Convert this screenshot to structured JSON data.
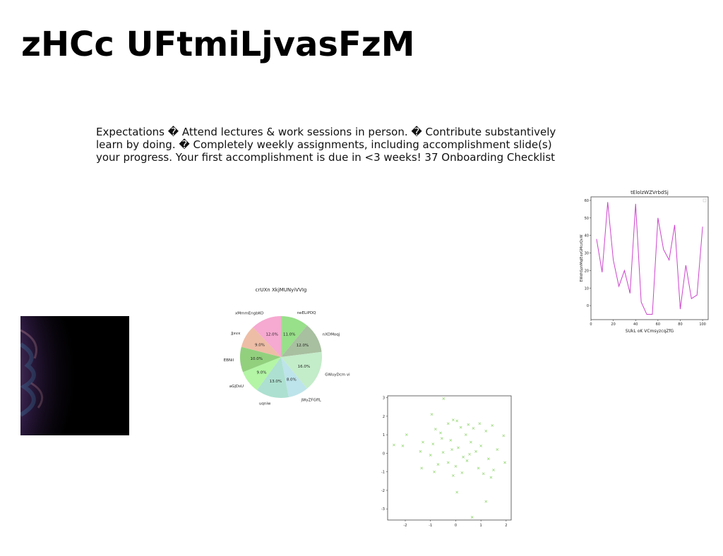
{
  "slide": {
    "title": "zHCc UFtmiLjvasFzM",
    "body_lines": [
      "Expectations � Attend lectures & work sessions in person. � Contribute substantively",
      "learn by doing. � Completely weekly assignments, including accomplishment slide(s)",
      "your progress. Your first accomplishment is due in <3 weeks! 37 Onboarding Checklist"
    ]
  },
  "chart_data": [
    {
      "type": "pie",
      "title": "crUXn XkjMUNyiVVIg",
      "labels": [
        "neELiPDQ",
        "nXDMoqj",
        "GWuyDcm vi",
        "jWyZFGffL",
        "uqniw",
        "aGjDsU",
        "EBNiI",
        "Jjxvx",
        "xMmmEngbKO"
      ],
      "values": [
        11.0,
        12.0,
        16.0,
        8.0,
        13.0,
        9.0,
        10.0,
        9.0,
        12.0
      ],
      "colors": [
        "#98e08a",
        "#a8bfa0",
        "#c3ecc9",
        "#bde4ea",
        "#ade0d0",
        "#b3f5a5",
        "#92d07e",
        "#eebda6",
        "#f6a9d1"
      ]
    },
    {
      "type": "line",
      "title": "tElolzWZVrbdSj",
      "xlabel": "SUkL oK VCmsyzcqZfG",
      "ylabel": "EWdhSphMqlEozGMczQvW",
      "x": [
        5,
        10,
        15,
        20,
        25,
        30,
        35,
        40,
        45,
        50,
        55,
        60,
        65,
        70,
        75,
        80,
        85,
        90,
        95,
        100
      ],
      "y": [
        38,
        19,
        59,
        26,
        11,
        20,
        7,
        58,
        2,
        -5,
        -5,
        50,
        32,
        26,
        46,
        -2,
        23,
        4,
        6,
        45
      ],
      "xlim": [
        0,
        105
      ],
      "ylim": [
        -8,
        62
      ],
      "xticks": [
        0,
        20,
        40,
        60,
        80,
        100
      ],
      "yticks": [
        0,
        10,
        20,
        30,
        40,
        50,
        60
      ],
      "color": "#cc44cc"
    },
    {
      "type": "scatter",
      "xlim": [
        -2.7,
        2.2
      ],
      "ylim": [
        -3.6,
        3.1
      ],
      "xticks": [
        -2,
        -1,
        0,
        1,
        2
      ],
      "yticks": [
        -3,
        -2,
        -1,
        0,
        1,
        2,
        3
      ],
      "marker": "x",
      "color": "#9edb7f",
      "points": [
        [
          -0.48,
          2.95
        ],
        [
          -0.95,
          2.1
        ],
        [
          -0.1,
          1.8
        ],
        [
          0.05,
          1.75
        ],
        [
          -0.3,
          1.6
        ],
        [
          0.5,
          1.55
        ],
        [
          0.95,
          1.6
        ],
        [
          1.45,
          1.5
        ],
        [
          -1.95,
          1.0
        ],
        [
          -0.8,
          1.3
        ],
        [
          0.2,
          1.4
        ],
        [
          0.7,
          1.35
        ],
        [
          -0.6,
          1.1
        ],
        [
          0.4,
          1.0
        ],
        [
          1.2,
          1.2
        ],
        [
          -2.45,
          0.45
        ],
        [
          -2.1,
          0.4
        ],
        [
          -1.3,
          0.6
        ],
        [
          -0.9,
          0.5
        ],
        [
          -0.2,
          0.7
        ],
        [
          0.1,
          0.3
        ],
        [
          0.6,
          0.6
        ],
        [
          1.0,
          0.4
        ],
        [
          1.65,
          0.2
        ],
        [
          1.9,
          0.95
        ],
        [
          -1.4,
          0.1
        ],
        [
          -1.0,
          -0.1
        ],
        [
          -0.5,
          0.05
        ],
        [
          0.3,
          -0.2
        ],
        [
          0.8,
          0.1
        ],
        [
          1.3,
          -0.3
        ],
        [
          -1.35,
          -0.8
        ],
        [
          -0.7,
          -0.6
        ],
        [
          -0.3,
          -0.5
        ],
        [
          0.0,
          -0.7
        ],
        [
          0.45,
          -0.4
        ],
        [
          0.9,
          -0.8
        ],
        [
          1.5,
          -0.9
        ],
        [
          1.95,
          -0.5
        ],
        [
          -0.85,
          -1.0
        ],
        [
          -0.1,
          -1.2
        ],
        [
          0.25,
          -1.05
        ],
        [
          1.1,
          -1.1
        ],
        [
          1.4,
          -1.3
        ],
        [
          0.05,
          -2.1
        ],
        [
          1.2,
          -2.6
        ],
        [
          0.65,
          -3.45
        ],
        [
          -0.55,
          0.8
        ],
        [
          0.55,
          -0.05
        ],
        [
          -0.15,
          0.2
        ]
      ]
    }
  ]
}
